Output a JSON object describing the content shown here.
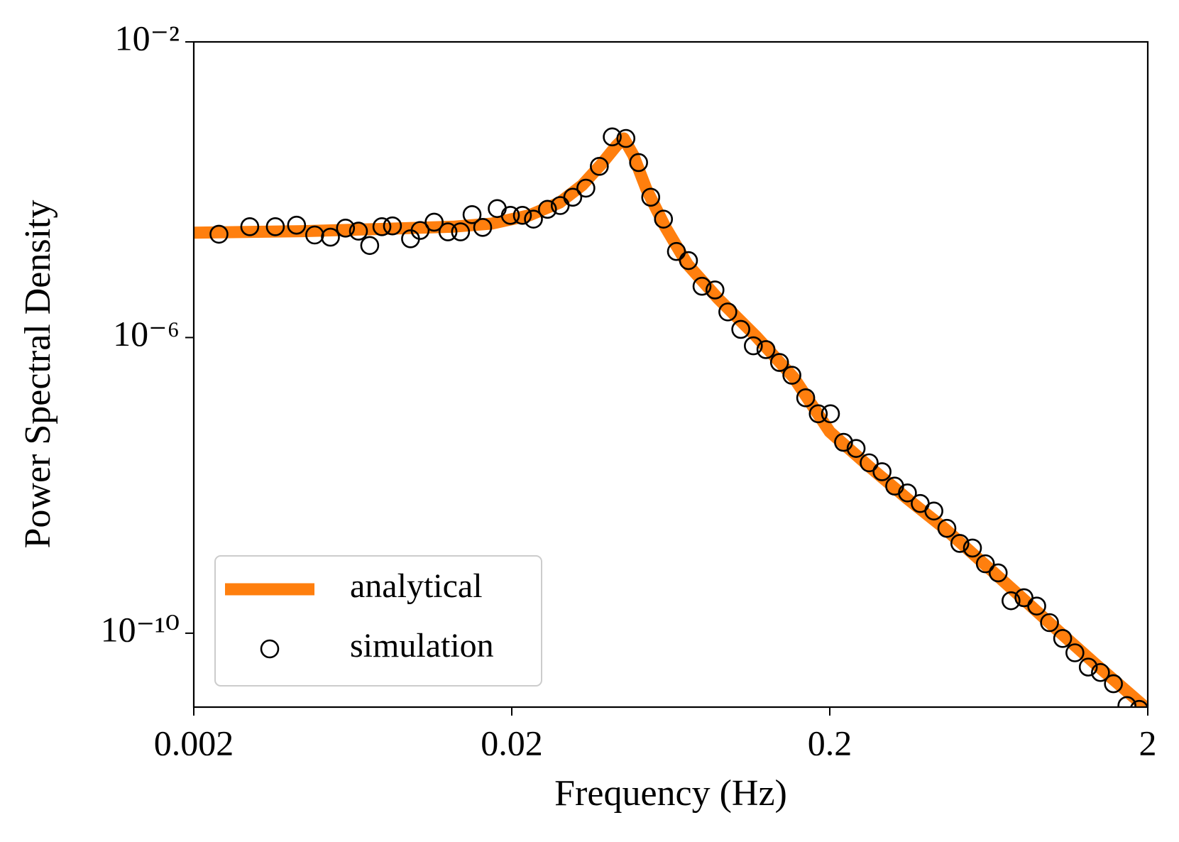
{
  "chart_data": {
    "type": "line",
    "xlabel": "Frequency (Hz)",
    "ylabel": "Power Spectral Density",
    "xscale": "log",
    "yscale": "log",
    "xlim": [
      0.002,
      2
    ],
    "ylim": [
      1e-11,
      0.01
    ],
    "xticks": [
      0.002,
      0.02,
      0.2,
      2
    ],
    "yticks": [
      {
        "value": 0.01,
        "label": "10⁻²"
      },
      {
        "value": 1e-06,
        "label": "10⁻⁶"
      },
      {
        "value": 1e-10,
        "label": "10⁻¹⁰"
      }
    ],
    "legend": "lower left",
    "series": [
      {
        "name": "analytical",
        "color": "#ff7f0e",
        "style": "line",
        "x": [
          0.002,
          0.0044,
          0.0076,
          0.0131,
          0.0173,
          0.0227,
          0.0283,
          0.0333,
          0.0381,
          0.0426,
          0.045,
          0.0482,
          0.053,
          0.0607,
          0.0714,
          0.0889,
          0.117,
          0.154,
          0.2,
          0.266,
          0.349,
          0.459,
          0.604,
          0.794,
          1.04,
          1.37,
          2
        ],
        "values": [
          2.62e-05,
          2.75e-05,
          2.94e-05,
          3.16e-05,
          3.48e-05,
          4.5e-05,
          6.71e-05,
          0.000115,
          0.000217,
          0.000391,
          0.000494,
          0.000294,
          0.000102,
          3.16e-05,
          9.77e-06,
          3.4e-06,
          1.05e-06,
          2.88e-07,
          5.3e-08,
          1.8e-08,
          6.71e-09,
          2.62e-09,
          9.1e-10,
          3.16e-10,
          1.1e-10,
          3.82e-11,
          9.3e-12
        ]
      },
      {
        "name": "simulation",
        "color": "#000000",
        "style": "marker",
        "x": [
          0.0024,
          0.003,
          0.00361,
          0.00421,
          0.0048,
          0.00538,
          0.006,
          0.00659,
          0.00715,
          0.00781,
          0.00843,
          0.00961,
          0.0103,
          0.0114,
          0.0126,
          0.0138,
          0.015,
          0.0162,
          0.018,
          0.0198,
          0.0216,
          0.0234,
          0.0259,
          0.0284,
          0.0311,
          0.0342,
          0.0377,
          0.0414,
          0.0457,
          0.0501,
          0.0547,
          0.06,
          0.0659,
          0.0719,
          0.0793,
          0.0871,
          0.0956,
          0.105,
          0.115,
          0.126,
          0.139,
          0.152,
          0.168,
          0.184,
          0.201,
          0.221,
          0.242,
          0.266,
          0.292,
          0.32,
          0.351,
          0.385,
          0.425,
          0.467,
          0.513,
          0.562,
          0.617,
          0.677,
          0.743,
          0.816,
          0.895,
          0.982,
          1.08,
          1.18,
          1.3,
          1.42,
          1.56,
          1.72,
          1.88
        ],
        "values": [
          2.5e-05,
          3.16e-05,
          3.16e-05,
          3.31e-05,
          2.44e-05,
          2.28e-05,
          3.02e-05,
          2.75e-05,
          1.76e-05,
          3.16e-05,
          3.24e-05,
          2.17e-05,
          2.81e-05,
          3.64e-05,
          2.69e-05,
          2.69e-05,
          4.6e-05,
          3.09e-05,
          5.56e-05,
          4.5e-05,
          4.5e-05,
          4e-05,
          5.43e-05,
          6.11e-05,
          7.91e-05,
          0.000105,
          0.000207,
          0.000518,
          0.000494,
          0.000233,
          7.91e-05,
          4e-05,
          1.46e-05,
          1.1e-05,
          4.94e-06,
          4.4e-06,
          2.22e-06,
          1.29e-06,
          7.73e-07,
          6.87e-07,
          4.6e-07,
          3.09e-07,
          1.53e-07,
          9.31e-08,
          9.31e-08,
          3.82e-08,
          3.16e-08,
          2.02e-08,
          1.53e-08,
          9.77e-09,
          7.91e-09,
          5.69e-09,
          4.5e-09,
          2.62e-09,
          1.64e-09,
          1.42e-09,
          8.69e-10,
          6.55e-10,
          2.75e-10,
          3.02e-10,
          2.33e-10,
          1.39e-10,
          8.49e-11,
          5.43e-11,
          3.48e-11,
          2.94e-11,
          2.07e-11,
          1.05e-11,
          9.31e-12
        ]
      }
    ]
  }
}
